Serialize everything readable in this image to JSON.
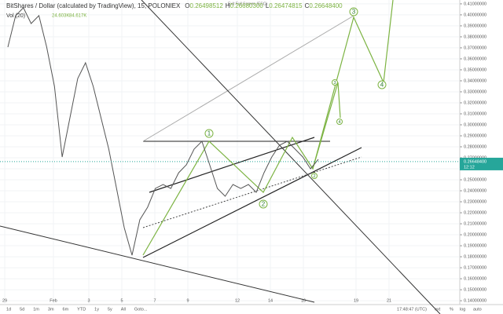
{
  "chart_data": {
    "type": "line",
    "title": "BitShares / Dollar (calculated by TradingView), 15, POLONIEX",
    "ohlc": {
      "open": "O",
      "open_value": "0.26498512",
      "high": "H",
      "high_value": "0.26680300",
      "low": "L",
      "low_value": "0.26474815",
      "close": "C",
      "close_value": "0.26648400"
    },
    "volume_label": "Vol (20)",
    "volume_values": [
      "24.603K",
      "84.617K"
    ],
    "exit_fullscreen": "Exit Full Screen (ESC)",
    "series": [
      {
        "name": "BTS/USD",
        "color": "#555555",
        "values": [
          0.3707,
          0.3993,
          0.4064,
          0.3921,
          0.3993,
          0.3707,
          0.335,
          0.2707,
          0.3064,
          0.3421,
          0.3564,
          0.335,
          0.3064,
          0.2779,
          0.2421,
          0.2064,
          0.1814,
          0.2136,
          0.225,
          0.2421,
          0.2457,
          0.2421,
          0.2564,
          0.2636,
          0.2779,
          0.285,
          0.2636,
          0.2421,
          0.235,
          0.2457,
          0.2421,
          0.2457,
          0.2386,
          0.2564,
          0.2707,
          0.2814,
          0.285,
          0.2779,
          0.2707,
          0.26,
          0.2686
        ]
      }
    ],
    "last_price": {
      "value": 0.266484,
      "label": "0.26648400"
    },
    "countdown": "12:12",
    "ylim": [
      0.4135,
      0.1365
    ],
    "yticks": [
      {
        "value": 0.41,
        "label": "0.41000000"
      },
      {
        "value": 0.4,
        "label": "0.40000000"
      },
      {
        "value": 0.39,
        "label": "0.39000000"
      },
      {
        "value": 0.38,
        "label": "0.38000000"
      },
      {
        "value": 0.37,
        "label": "0.37000000"
      },
      {
        "value": 0.36,
        "label": "0.36000000"
      },
      {
        "value": 0.35,
        "label": "0.35000000"
      },
      {
        "value": 0.34,
        "label": "0.34000000"
      },
      {
        "value": 0.33,
        "label": "0.33000000"
      },
      {
        "value": 0.32,
        "label": "0.32000000"
      },
      {
        "value": 0.31,
        "label": "0.31000000"
      },
      {
        "value": 0.3,
        "label": "0.30000000"
      },
      {
        "value": 0.29,
        "label": "0.29000000"
      },
      {
        "value": 0.28,
        "label": "0.28000000"
      },
      {
        "value": 0.27,
        "label": "0.27000000"
      },
      {
        "value": 0.26,
        "label": "0.26000000"
      },
      {
        "value": 0.25,
        "label": "0.25000000"
      },
      {
        "value": 0.24,
        "label": "0.24000000"
      },
      {
        "value": 0.23,
        "label": "0.23000000"
      },
      {
        "value": 0.22,
        "label": "0.22000000"
      },
      {
        "value": 0.21,
        "label": "0.21000000"
      },
      {
        "value": 0.2,
        "label": "0.20000000"
      },
      {
        "value": 0.19,
        "label": "0.19000000"
      },
      {
        "value": 0.18,
        "label": "0.18000000"
      },
      {
        "value": 0.17,
        "label": "0.17000000"
      },
      {
        "value": 0.16,
        "label": "0.16000000"
      },
      {
        "value": 0.15,
        "label": "0.15000000"
      },
      {
        "value": 0.14,
        "label": "0.14000000"
      }
    ],
    "xtick_labels": [
      "29",
      "Feb",
      "3",
      "5",
      "7",
      "9",
      "12",
      "14",
      "16",
      "19",
      "21"
    ],
    "wave_labels": [
      "1",
      "2",
      "3",
      "4",
      "3",
      "4",
      "2"
    ],
    "grid": true,
    "toolbar": {
      "ranges": [
        "1d",
        "5d",
        "1m",
        "3m",
        "6m",
        "YTD",
        "1y",
        "5y",
        "All",
        "Goto..."
      ],
      "time": "17:48:47 (UTC)",
      "options": [
        "ext",
        "%",
        "log",
        "auto"
      ]
    }
  }
}
